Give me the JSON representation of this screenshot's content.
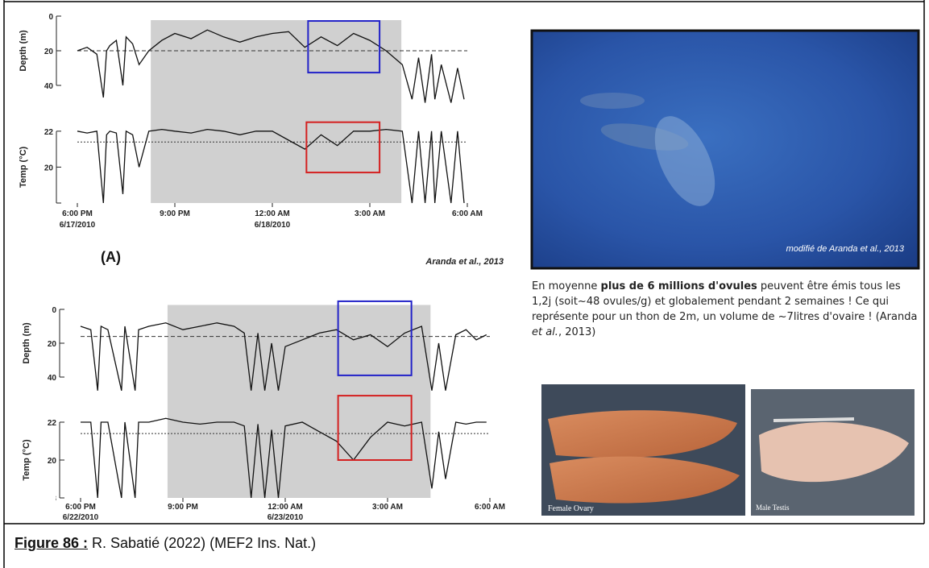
{
  "figure": {
    "panels": [
      {
        "label": "(A)",
        "citation": "Aranda et al., 2013",
        "xlim": [
          18,
          30
        ],
        "xticks": [
          {
            "value": 18,
            "label": "6:00 PM"
          },
          {
            "value": 21,
            "label": "9:00 PM"
          },
          {
            "value": 24,
            "label": "12:00 AM"
          },
          {
            "value": 27,
            "label": "3:00 AM"
          },
          {
            "value": 30,
            "label": "6:00 AM"
          }
        ],
        "dates": [
          {
            "value": 18,
            "label": "6/17/2010"
          },
          {
            "value": 24,
            "label": "6/18/2010"
          }
        ],
        "night": [
          20.26,
          27.97
        ],
        "x": [
          18,
          18.3,
          18.6,
          18.8,
          18.9,
          19.0,
          19.2,
          19.4,
          19.5,
          19.7,
          19.9,
          20.2,
          20.6,
          21.0,
          21.5,
          22.0,
          22.5,
          23.0,
          23.5,
          24.0,
          24.5,
          25.0,
          25.5,
          26.0,
          26.5,
          27.0,
          27.5,
          28.0,
          28.3,
          28.5,
          28.7,
          28.9,
          29.0,
          29.2,
          29.5,
          29.7,
          29.9
        ],
        "depth": {
          "axis_label": "Depth (m)",
          "ylim": [
            0,
            50
          ],
          "yticks": [
            0,
            20,
            40
          ],
          "reference": 20,
          "color": "#111111",
          "values": [
            20,
            18,
            22,
            47,
            20,
            17,
            14,
            40,
            12,
            16,
            28,
            20,
            14,
            10,
            13,
            8,
            12,
            15,
            12,
            10,
            9,
            18,
            12,
            17,
            10,
            14,
            20,
            28,
            48,
            24,
            50,
            22,
            48,
            28,
            50,
            30,
            48
          ],
          "highlight": {
            "x": [
              25.1,
              27.3
            ],
            "y": [
              2.8,
              32.6
            ],
            "color": "#2323c8"
          }
        },
        "temp": {
          "axis_label": "Temp (°C)",
          "ylim": [
            18,
            22.8
          ],
          "yticks": [
            18,
            20,
            22
          ],
          "reference": 21.4,
          "color": "#111111",
          "values": [
            22,
            21.9,
            22,
            18,
            21.8,
            22,
            21.9,
            18.5,
            22,
            21.8,
            20,
            22,
            22.1,
            22,
            21.9,
            22.1,
            22,
            21.8,
            22,
            22,
            21.5,
            21,
            21.8,
            21.2,
            22,
            22,
            22.1,
            22,
            18,
            22,
            18,
            22,
            18,
            22,
            18,
            22,
            18
          ],
          "highlight": {
            "x": [
              25.05,
              27.3
            ],
            "y": [
              19.7,
              22.5
            ],
            "color": "#d42020"
          }
        }
      },
      {
        "xlim": [
          18,
          30
        ],
        "xticks": [
          {
            "value": 18,
            "label": "6:00 PM"
          },
          {
            "value": 21,
            "label": "9:00 PM"
          },
          {
            "value": 24,
            "label": "12:00 AM"
          },
          {
            "value": 27,
            "label": "3:00 AM"
          },
          {
            "value": 30,
            "label": "6:00 AM"
          }
        ],
        "dates": [
          {
            "value": 18,
            "label": "6/22/2010"
          },
          {
            "value": 24,
            "label": "6/23/2010"
          }
        ],
        "night": [
          20.55,
          28.26
        ],
        "x": [
          18,
          18.3,
          18.5,
          18.6,
          18.8,
          19.2,
          19.3,
          19.6,
          19.7,
          20.0,
          20.5,
          21.0,
          21.5,
          22.0,
          22.5,
          22.8,
          23.0,
          23.2,
          23.4,
          23.6,
          23.8,
          24.0,
          24.5,
          25.0,
          25.5,
          26.0,
          26.5,
          27.0,
          27.5,
          28.0,
          28.3,
          28.5,
          28.7,
          29.0,
          29.3,
          29.6,
          29.9
        ],
        "depth": {
          "axis_label": "Depth (m)",
          "ylim": [
            -5,
            50
          ],
          "yticks": [
            0,
            20,
            40
          ],
          "reference": 16,
          "color": "#111111",
          "values": [
            10,
            12,
            48,
            10,
            12,
            48,
            10,
            48,
            12,
            10,
            8,
            12,
            10,
            8,
            10,
            14,
            48,
            14,
            48,
            20,
            48,
            22,
            18,
            14,
            12,
            18,
            15,
            22,
            14,
            10,
            48,
            20,
            48,
            15,
            12,
            18,
            15
          ],
          "highlight": {
            "x": [
              25.55,
              27.7
            ],
            "y": [
              -4.8,
              39
            ],
            "color": "#2323c8"
          }
        },
        "temp": {
          "axis_label": "Temp (°C)",
          "ylim": [
            18,
            23.5
          ],
          "yticks": [
            18,
            20,
            22
          ],
          "reference": 21.4,
          "color": "#111111",
          "values": [
            22,
            22,
            18,
            22,
            22,
            18,
            22,
            18,
            22,
            22,
            22.2,
            22,
            21.9,
            22,
            22,
            21.8,
            18,
            21.9,
            18,
            21.6,
            18,
            21.8,
            22,
            21.5,
            21,
            20,
            21.2,
            22,
            21.8,
            22,
            18.5,
            21.5,
            19,
            22,
            21.9,
            22,
            22
          ],
          "highlight": {
            "x": [
              25.55,
              27.7
            ],
            "y": [
              20.0,
              23.4
            ],
            "color": "#d42020"
          }
        }
      }
    ],
    "photo_credit": "modifié de Aranda et al., 2013",
    "paragraph": [
      "En moyenne ",
      "plus de 6 millions d'ovules",
      " peuvent être émis tous les 1,2j (soit~48 ovules/g) et globalement pendant 2 semaines ! Ce qui représente pour un thon de 2m, un volume de ~7litres d'ovaire ! (Aranda ",
      "et al.",
      ", 2013)"
    ],
    "photo_labels": [
      "Female Ovary",
      "Male Testis"
    ]
  },
  "caption": {
    "label": "Figure 86 :",
    "text": " R. Sabatié (2022) (MEF2 Ins. Nat.)"
  }
}
